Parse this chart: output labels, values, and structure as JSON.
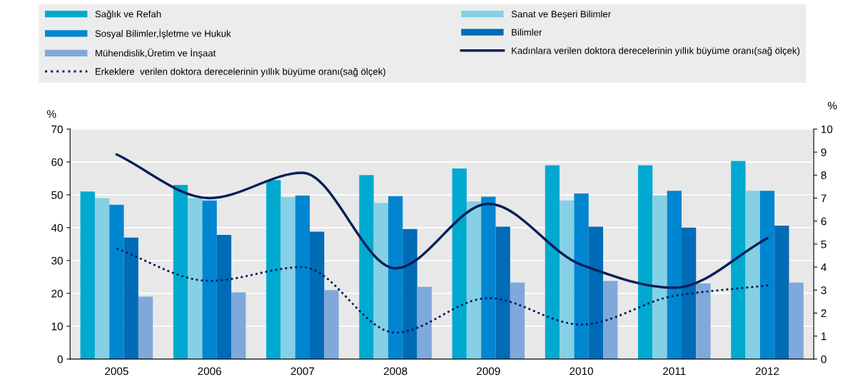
{
  "chart_data": {
    "type": "bar",
    "ylabel": "%",
    "y2label": "%",
    "categories": [
      "2005",
      "2006",
      "2007",
      "2008",
      "2009",
      "2010",
      "2011",
      "2012"
    ],
    "series": [
      {
        "name": "Sağlık ve Refah",
        "color": "#00a9cf",
        "values": [
          51,
          53,
          54.5,
          56,
          58,
          59,
          59,
          60.3
        ]
      },
      {
        "name": "Sanat ve Beşeri Bilimler",
        "color": "#85d0e5",
        "values": [
          49,
          49,
          49.3,
          47.5,
          48,
          48.3,
          49.8,
          51.2
        ]
      },
      {
        "name": "Sosyal Bilimler,İşletme ve Hukuk",
        "color": "#0086d1",
        "values": [
          47,
          48.3,
          49.8,
          49.6,
          49.4,
          50.4,
          51.2,
          51.2
        ]
      },
      {
        "name": "Bilimler",
        "color": "#006bb6",
        "values": [
          37,
          37.8,
          38.8,
          39.6,
          40.3,
          40.3,
          40,
          40.6
        ]
      },
      {
        "name": "Mühendislik,Üretim ve İnşaat",
        "color": "#7fa8db",
        "values": [
          19,
          20.3,
          21,
          22,
          23.3,
          23.8,
          23,
          23.3
        ]
      },
      {
        "name": "Kadınlara verilen doktora derecelerinin yıllık büyüme oranı(sağ ölçek)",
        "type": "line",
        "axis": "y2",
        "line_style": "solid",
        "color": "#0a1f5c",
        "values": [
          8.9,
          7.0,
          8.1,
          3.95,
          6.75,
          4.1,
          3.1,
          5.25
        ]
      },
      {
        "name": "Erkeklere  verilen doktora derecelerinin yıllık büyüme oranı(sağ ölçek)",
        "type": "line",
        "axis": "y2",
        "line_style": "dotted",
        "color": "#0a1f5c",
        "values": [
          4.8,
          3.4,
          4.0,
          1.15,
          2.65,
          1.5,
          2.75,
          3.2
        ]
      }
    ],
    "ylim": [
      0,
      70
    ],
    "yticks": [
      0,
      10,
      20,
      30,
      40,
      50,
      60,
      70
    ],
    "y2lim": [
      0,
      10
    ],
    "y2ticks": [
      0,
      1,
      2,
      3,
      4,
      5,
      6,
      7,
      8,
      9,
      10
    ],
    "grid": true,
    "legend": "top"
  }
}
